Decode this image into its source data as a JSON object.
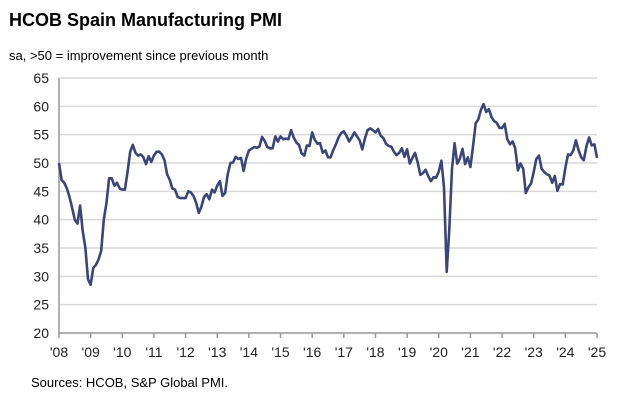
{
  "chart_data": {
    "type": "line",
    "title": "HCOB Spain Manufacturing PMI",
    "subtitle": "sa, >50 = improvement since previous month",
    "source": "Sources: HCOB, S&P Global PMI.",
    "xlabel": "",
    "ylabel": "",
    "ylim": [
      20,
      65
    ],
    "yticks": [
      20,
      25,
      30,
      35,
      40,
      45,
      50,
      55,
      60,
      65
    ],
    "xticks": [
      "'08",
      "'09",
      "'10",
      "'11",
      "'12",
      "'13",
      "'14",
      "'15",
      "'16",
      "'17",
      "'18",
      "'19",
      "'20",
      "'21",
      "'22",
      "'23",
      "'24",
      "'25"
    ],
    "x_start": "Jan 2008",
    "x_end": "Jan 2025",
    "frequency": "monthly",
    "grid": true,
    "line_color": "#3b4676",
    "values": [
      50,
      47,
      46.5,
      45.5,
      44,
      42,
      40,
      39.3,
      42.5,
      38,
      35,
      29.5,
      28.5,
      31.5,
      32,
      33,
      34.5,
      40,
      43,
      47.3,
      47.3,
      46,
      46.5,
      45.5,
      45.3,
      45.3,
      48.5,
      52,
      53.2,
      51.8,
      51.3,
      51.5,
      51,
      49.8,
      51.2,
      50.2,
      51.3,
      52,
      52,
      51.5,
      50.5,
      48,
      47,
      45.5,
      45.3,
      44,
      43.8,
      43.8,
      43.8,
      45,
      44.8,
      44.2,
      43,
      41.2,
      42.3,
      44,
      44.5,
      43.6,
      45.3,
      44.8,
      46,
      46.8,
      44.2,
      44.7,
      48.1,
      50,
      50.1,
      51.1,
      50.7,
      50.9,
      48.6,
      50.8,
      52.2,
      52.5,
      52.8,
      52.7,
      52.9,
      54.6,
      53.9,
      52.8,
      52.6,
      52.6,
      54.7,
      53.8,
      54.7,
      54.2,
      54.3,
      54.2,
      55.8,
      54.5,
      53.6,
      53.2,
      51.7,
      51.3,
      53.1,
      53,
      55.4,
      54.1,
      53.4,
      53.5,
      51.8,
      52.2,
      51,
      51,
      52.3,
      53.3,
      54.5,
      55.3,
      55.6,
      54.8,
      53.8,
      54.5,
      55.4,
      54.7,
      54,
      52.4,
      54.3,
      55.8,
      56.1,
      55.8,
      55.4,
      56,
      54.8,
      54.4,
      53.4,
      53,
      52.9,
      52,
      51.4,
      51.8,
      52.6,
      51.1,
      52.4,
      49.9,
      50.9,
      51.8,
      50.1,
      47.9,
      48.2,
      48.8,
      47.7,
      46.8,
      47.5,
      47.4,
      48.5,
      50.4,
      45.7,
      30.8,
      38.3,
      49,
      53.5,
      49.9,
      50.8,
      52.5,
      49.8,
      51,
      49.3,
      52.9,
      57,
      57.7,
      59.4,
      60.4,
      59,
      59.5,
      58.1,
      57.4,
      57.1,
      56.2,
      56.2,
      56.9,
      54.2,
      53.3,
      53.8,
      52.6,
      48.7,
      49.9,
      49,
      44.7,
      45.7,
      46.4,
      48.4,
      50.7,
      51.3,
      49,
      48.4,
      48,
      47.8,
      46.5,
      47.7,
      45.1,
      46.3,
      46.2,
      49.2,
      51.5,
      51.4,
      52.2,
      54,
      52.3,
      51,
      50.5,
      53,
      54.5,
      53.1,
      53.3,
      50.9
    ]
  }
}
